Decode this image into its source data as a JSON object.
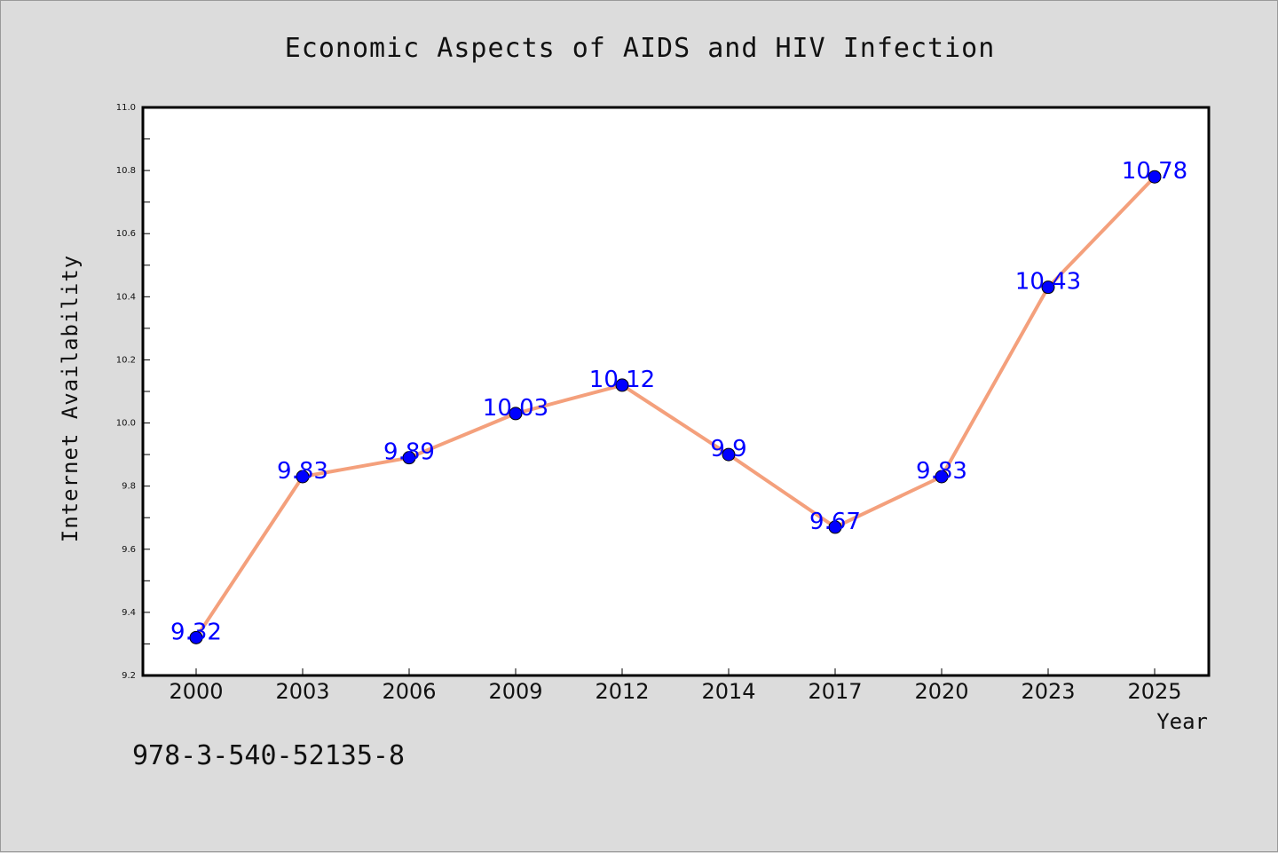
{
  "chart_data": {
    "type": "line",
    "title": "Economic Aspects of AIDS and HIV Infection",
    "xlabel": "Year",
    "ylabel": "Internet Availability",
    "categories": [
      "2000",
      "2003",
      "2006",
      "2009",
      "2012",
      "2014",
      "2017",
      "2020",
      "2023",
      "2025"
    ],
    "values": [
      9.32,
      9.83,
      9.89,
      10.03,
      10.12,
      9.9,
      9.67,
      9.83,
      10.43,
      10.78
    ],
    "data_labels": [
      "9.32",
      "9.83",
      "9.89",
      "10.03",
      "10.12",
      "9.9",
      "9.67",
      "9.83",
      "10.43",
      "10.78"
    ],
    "ylim": [
      9.2,
      11.0
    ],
    "yticks": [
      "9.2",
      "9.4",
      "9.6",
      "9.8",
      "10.0",
      "10.2",
      "10.4",
      "10.6",
      "10.8",
      "11.0"
    ],
    "grid": false,
    "legend": false,
    "colors": {
      "line": "#f4a07c",
      "marker": "#0000ff",
      "data_label": "#0000ff",
      "background": "#dcdcdc",
      "plot_background": "#ffffff"
    }
  },
  "footer": {
    "isbn": "978-3-540-52135-8"
  }
}
